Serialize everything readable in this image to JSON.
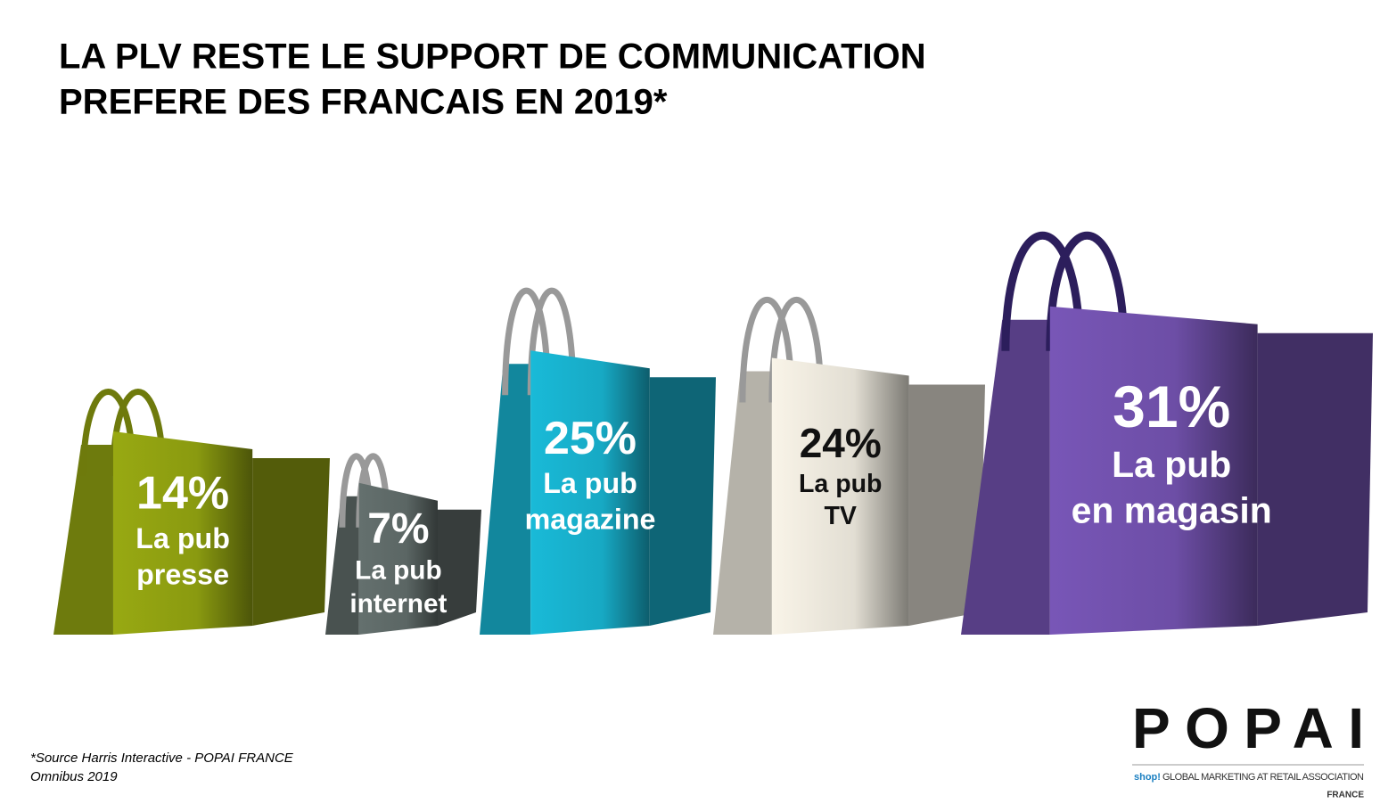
{
  "chart_data": {
    "type": "bags",
    "title": [
      "LA PLV RESTE LE SUPPORT DE COMMUNICATION",
      "PREFERE DES FRANCAIS  EN 2019*"
    ],
    "categories": [
      [
        "La pub",
        "presse"
      ],
      [
        "La pub",
        "internet"
      ],
      [
        "La pub",
        "magazine"
      ],
      [
        "La pub",
        "TV"
      ],
      [
        "La pub",
        "en magasin"
      ]
    ],
    "values": [
      14,
      7,
      25,
      24,
      31
    ],
    "value_labels": [
      "14%",
      "7%",
      "25%",
      "24%",
      "31%"
    ],
    "colors": [
      "#8a9a10",
      "#5b6664",
      "#17a9c4",
      "#e2ded3",
      "#6d4ea6"
    ],
    "label_colors": [
      "#ffffff",
      "#ffffff",
      "#ffffff",
      "#111111",
      "#ffffff"
    ],
    "source": [
      "*Source Harris Interactive - POPAI FRANCE",
      "Omnibus 2019"
    ]
  },
  "logo": {
    "name": "POPAI",
    "tagline_brand": "shop!",
    "tagline": "GLOBAL MARKETING AT RETAIL ASSOCIATION",
    "country": "FRANCE"
  }
}
